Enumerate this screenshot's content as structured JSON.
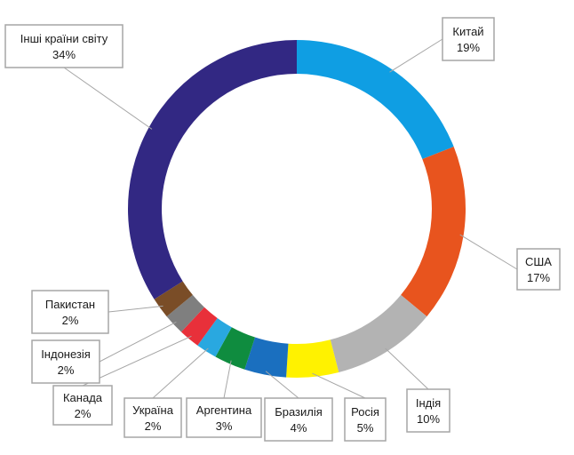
{
  "chart_data": {
    "type": "pie",
    "donut": true,
    "categories": [
      "Китай",
      "США",
      "Індія",
      "Росія",
      "Бразилія",
      "Аргентина",
      "Україна",
      "Канада",
      "Індонезія",
      "Пакистан",
      "Інші країни світу"
    ],
    "values": [
      19,
      17,
      10,
      5,
      4,
      3,
      2,
      2,
      2,
      2,
      34
    ],
    "value_labels": [
      "19%",
      "17%",
      "10%",
      "5%",
      "4%",
      "3%",
      "2%",
      "2%",
      "2%",
      "2%",
      "34%"
    ],
    "colors": [
      "#0f9ee3",
      "#e8541e",
      "#b3b3b3",
      "#fff200",
      "#1a6fbf",
      "#0f8c3f",
      "#29a8e0",
      "#e8303a",
      "#7f7f7f",
      "#7a4d27",
      "#322883"
    ],
    "legend": "none",
    "title": ""
  }
}
